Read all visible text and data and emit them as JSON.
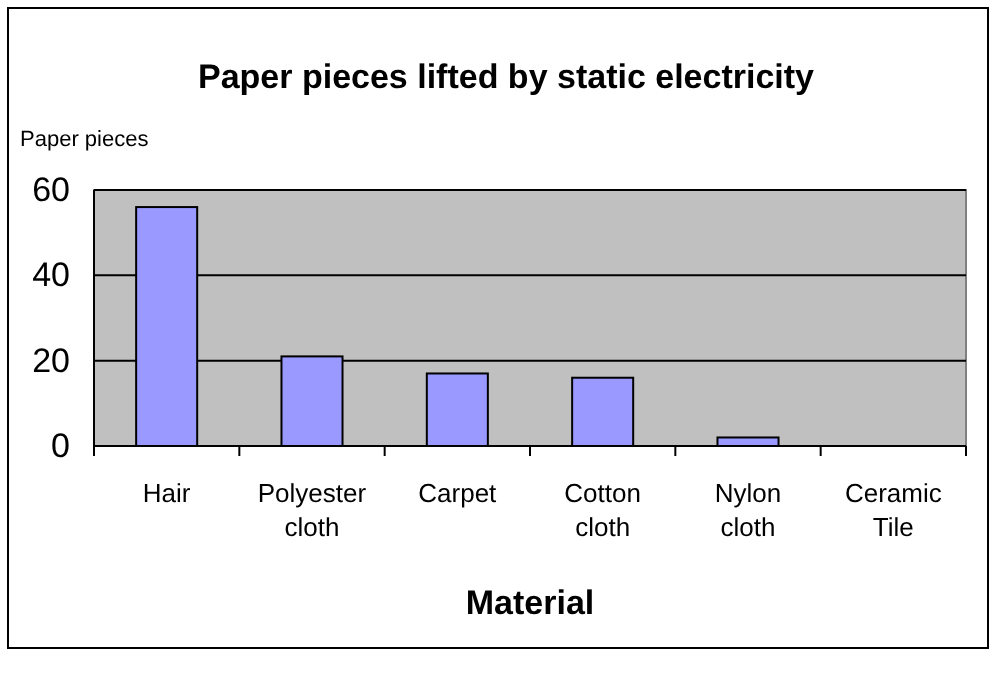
{
  "chart_data": {
    "type": "bar",
    "title": "Paper pieces lifted by static electricity",
    "xlabel": "Material",
    "ylabel": "Paper pieces",
    "categories": [
      "Hair",
      "Polyester cloth",
      "Carpet",
      "Cotton cloth",
      "Nylon cloth",
      "Ceramic Tile"
    ],
    "values": [
      56,
      21,
      17,
      16,
      2,
      0
    ],
    "color": "#9999ff",
    "ylim": [
      0,
      60
    ],
    "yticks": [
      0,
      20,
      40,
      60
    ],
    "grid": "y"
  }
}
